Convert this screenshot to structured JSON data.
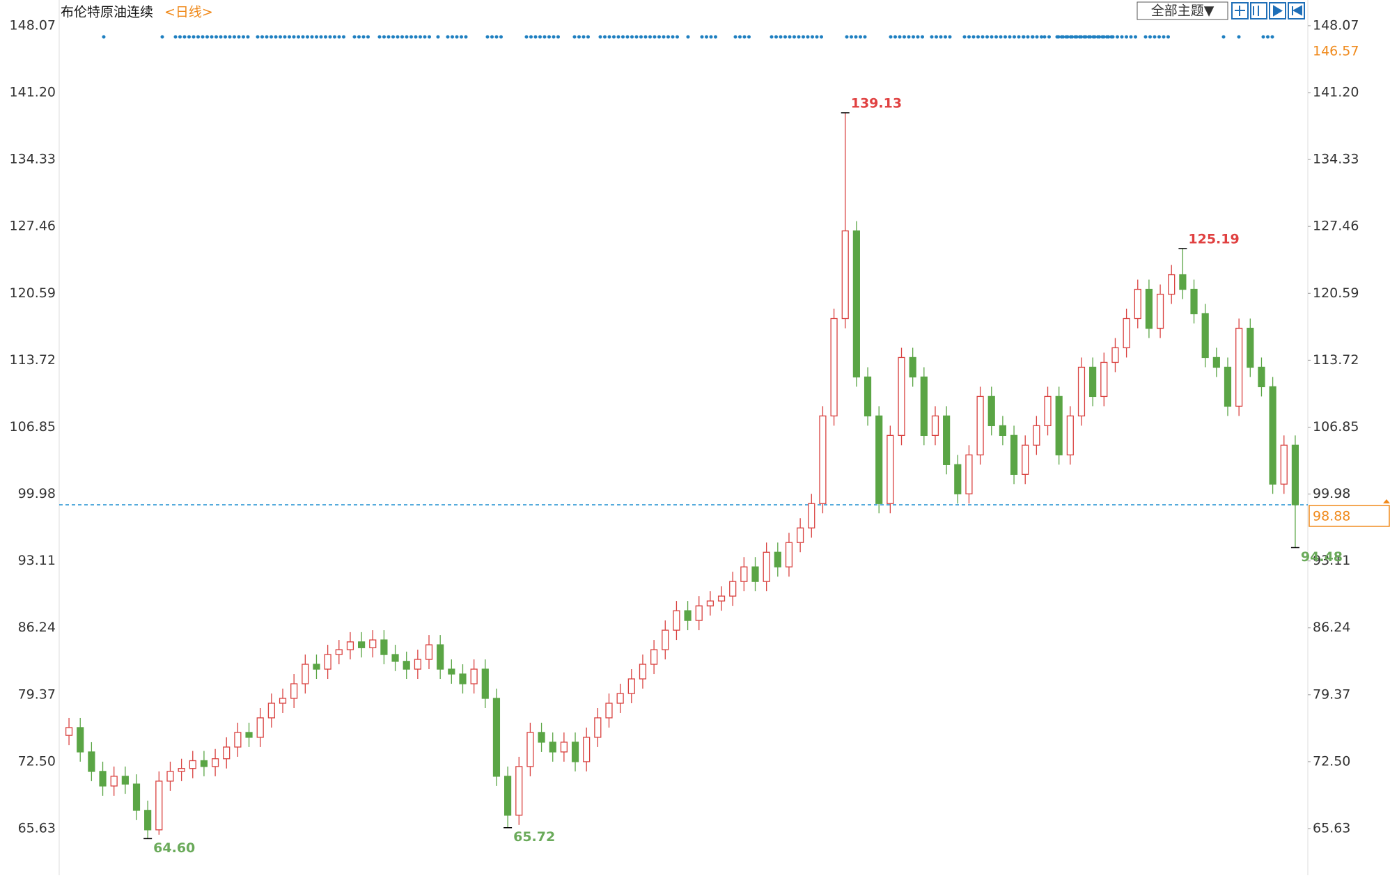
{
  "chart_data": {
    "type": "candlestick",
    "title": "布伦特原油连续",
    "subtitle": "<日线>",
    "menu_label": "全部主题▼",
    "open": [
      75.2,
      76,
      73.5,
      71.5,
      70,
      71,
      70.2,
      67.5,
      65.5,
      70.5,
      71.5,
      71.8,
      72.6,
      72,
      72.8,
      74,
      75.5,
      75,
      77,
      78.5,
      79,
      80.5,
      82.5,
      82,
      83.5,
      84,
      84.8,
      84.2,
      85,
      83.5,
      82.8,
      82,
      83,
      84.5,
      82,
      81.5,
      80.5,
      82,
      79,
      71,
      67,
      72,
      75.5,
      74.5,
      73.5,
      74.5,
      72.5,
      75,
      77,
      78.5,
      79.5,
      81,
      82.5,
      84,
      86,
      88,
      87,
      88.5,
      89,
      89.5,
      91,
      92.5,
      91,
      94,
      92.5,
      95,
      96.5,
      99,
      108,
      118,
      127,
      112,
      108,
      99,
      106,
      114,
      112,
      106,
      108,
      103,
      100,
      104,
      110,
      107,
      106,
      102,
      105,
      107,
      110,
      104,
      108,
      113,
      110,
      113.5,
      115,
      118,
      121,
      117,
      120.5,
      122.5,
      121,
      118.5,
      114,
      113,
      109,
      117,
      113,
      111,
      101,
      105
    ],
    "high": [
      77,
      77,
      74.5,
      72.5,
      72,
      72,
      71.2,
      68.5,
      71.5,
      72.5,
      72.8,
      73.6,
      73.6,
      73.8,
      75,
      76.5,
      76.5,
      78,
      79.5,
      80,
      81.5,
      83.5,
      83.5,
      84.5,
      85,
      85.8,
      85.8,
      86,
      86,
      84.5,
      83.8,
      84,
      85.5,
      85.5,
      83,
      82.5,
      83,
      83,
      80,
      72,
      73,
      76.5,
      76.5,
      75.5,
      75.5,
      75.5,
      76,
      78,
      79.5,
      80.5,
      82,
      83.5,
      85,
      87,
      89,
      89,
      89.5,
      90,
      90.5,
      92,
      93.5,
      93.5,
      95,
      95,
      96,
      97.5,
      100,
      109,
      119,
      139.13,
      128,
      113,
      109,
      107,
      115,
      115,
      113,
      109,
      109,
      104,
      105,
      111,
      111,
      108,
      107,
      106,
      108,
      111,
      111,
      109,
      114,
      114,
      114.5,
      116,
      119,
      122,
      122,
      121.5,
      123.5,
      125.19,
      122,
      119.5,
      115,
      114,
      118,
      118,
      114,
      112,
      106,
      106
    ],
    "low": [
      74.2,
      72.5,
      70.5,
      69,
      69,
      69.2,
      66.5,
      64.6,
      65,
      69.5,
      70.5,
      70.8,
      71,
      71,
      71.8,
      73,
      74,
      74,
      76,
      77.5,
      78,
      79.5,
      81,
      81,
      82.5,
      83,
      83.2,
      83.2,
      82.5,
      81.8,
      81,
      81,
      82,
      81,
      80.5,
      79.5,
      79.5,
      78,
      70,
      65.72,
      66,
      71,
      73.5,
      72.5,
      72.5,
      71.5,
      71.5,
      74,
      76,
      77.5,
      78.5,
      80,
      81.5,
      83,
      85,
      86,
      86,
      87.5,
      88,
      88.5,
      90,
      90,
      90,
      91.5,
      91.5,
      94,
      95.5,
      98,
      107,
      117,
      111,
      107,
      98,
      98,
      105,
      111,
      105,
      105,
      102,
      99,
      99,
      103,
      106,
      105,
      101,
      101,
      104,
      106,
      103,
      103,
      107,
      109,
      109,
      112.5,
      114,
      117,
      116,
      116,
      119.5,
      120,
      117.5,
      113,
      112,
      108,
      108,
      112,
      110,
      100,
      100,
      94.48
    ],
    "close": [
      76,
      73.5,
      71.5,
      70,
      71,
      70.2,
      67.5,
      65.5,
      70.5,
      71.5,
      71.8,
      72.6,
      72,
      72.8,
      74,
      75.5,
      75,
      77,
      78.5,
      79,
      80.5,
      82.5,
      82,
      83.5,
      84,
      84.8,
      84.2,
      85,
      83.5,
      82.8,
      82,
      83,
      84.5,
      82,
      81.5,
      80.5,
      82,
      79,
      71,
      67,
      72,
      75.5,
      74.5,
      73.5,
      74.5,
      72.5,
      75,
      77,
      78.5,
      79.5,
      81,
      82.5,
      84,
      86,
      88,
      87,
      88.5,
      89,
      89.5,
      91,
      92.5,
      91,
      94,
      92.5,
      95,
      96.5,
      99,
      108,
      118,
      127,
      112,
      108,
      99,
      106,
      114,
      112,
      106,
      108,
      103,
      100,
      104,
      110,
      107,
      106,
      102,
      105,
      107,
      110,
      104,
      108,
      113,
      110,
      113.5,
      115,
      118,
      121,
      117,
      120.5,
      122.5,
      121,
      118.5,
      114,
      113,
      109,
      117,
      113,
      111,
      101,
      105,
      98.88
    ],
    "up_color": "#d9413f",
    "down_color": "#5aa545",
    "ylim": [
      60.84,
      150.71
    ],
    "yticks": [
      148.07,
      {
        "value": 141.2,
        "label": "141.20"
      },
      134.33,
      127.46,
      120.59,
      113.72,
      106.85,
      99.98,
      93.11,
      86.24,
      79.37,
      {
        "value": 72.5,
        "label": "72.50"
      },
      65.63
    ],
    "annotations": [
      {
        "value": 139.13,
        "label": "139.13"
      },
      {
        "value": 125.19,
        "label": "125.19"
      },
      {
        "value": 64.6,
        "label": "64.60"
      },
      {
        "value": 65.72,
        "label": "65.72"
      },
      {
        "value": 94.48,
        "label": "94.48"
      }
    ],
    "high_label_color": "#e04040",
    "low_label_color": "#6aaa5a",
    "last_price": 98.88,
    "last_price_color": "#f08a1c",
    "last_line_color": "#1e8fd0",
    "right_label": 146.57
  }
}
